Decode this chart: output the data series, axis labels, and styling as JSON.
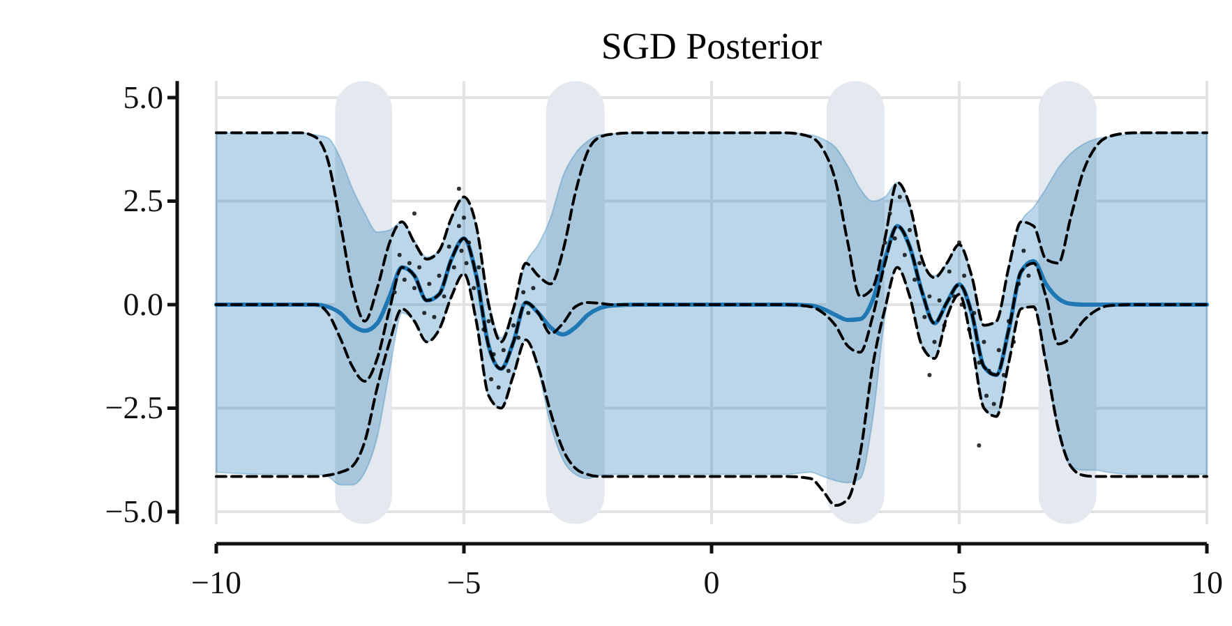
{
  "chart_data": {
    "type": "line",
    "title": "SGD Posterior",
    "x": [
      -10,
      -9,
      -8.3,
      -8,
      -7.75,
      -7.5,
      -7.25,
      -7,
      -6.75,
      -6.5,
      -6.25,
      -6,
      -5.75,
      -5.5,
      -5.25,
      -5,
      -4.75,
      -4.5,
      -4.25,
      -4,
      -3.75,
      -3.5,
      -3.25,
      -3,
      -2.75,
      -2.5,
      -2.25,
      -2,
      -1.5,
      -1,
      0,
      1,
      1.5,
      2,
      2.25,
      2.5,
      2.75,
      3,
      3.25,
      3.5,
      3.75,
      4,
      4.25,
      4.5,
      4.75,
      5,
      5.25,
      5.5,
      5.75,
      6,
      6.25,
      6.5,
      6.75,
      7,
      7.25,
      7.5,
      7.75,
      8,
      8.5,
      9,
      10
    ],
    "series": [
      {
        "color": "#1f77b4",
        "line_style": "solid",
        "values": [
          0,
          0,
          0,
          0,
          -0.05,
          -0.2,
          -0.5,
          -0.63,
          -0.45,
          0.2,
          0.9,
          0.7,
          0.1,
          0.25,
          1.1,
          1.6,
          0.7,
          -1.0,
          -1.55,
          -0.9,
          0.05,
          -0.2,
          -0.55,
          -0.72,
          -0.55,
          -0.25,
          -0.08,
          -0.02,
          0,
          0,
          0,
          0,
          0,
          -0.02,
          -0.1,
          -0.25,
          -0.37,
          -0.35,
          0.1,
          1.1,
          1.9,
          1.4,
          0.3,
          -0.45,
          0.05,
          0.49,
          -0.2,
          -1.5,
          -1.7,
          -0.6,
          0.8,
          1.05,
          0.5,
          0.15,
          0.02,
          0,
          0,
          0,
          0,
          0,
          0
        ],
        "upper": [
          4.15,
          4.13,
          4.15,
          4.1,
          4.03,
          3.55,
          2.8,
          2.2,
          1.75,
          1.8,
          2.0,
          1.55,
          1.15,
          1.3,
          2.1,
          2.6,
          1.9,
          0.1,
          -0.8,
          -0.05,
          1.0,
          1.45,
          2.1,
          3.1,
          3.65,
          3.95,
          4.1,
          4.13,
          4.15,
          4.17,
          4.15,
          4.15,
          4.15,
          4.1,
          4.0,
          3.8,
          3.35,
          2.8,
          2.5,
          2.6,
          2.95,
          2.4,
          1.1,
          0.7,
          1.0,
          1.45,
          0.7,
          -0.5,
          -0.4,
          0.95,
          2.0,
          2.35,
          2.8,
          3.3,
          3.65,
          3.87,
          4.0,
          4.05,
          4.12,
          4.15,
          4.15
        ],
        "lower": [
          -4.05,
          -4.1,
          -4.1,
          -4.1,
          -4.15,
          -4.35,
          -4.35,
          -4.05,
          -3.2,
          -1.6,
          -0.2,
          -0.4,
          -0.9,
          -0.6,
          0.2,
          0.75,
          -0.4,
          -2.2,
          -2.5,
          -1.7,
          -0.85,
          -1.6,
          -2.9,
          -3.75,
          -4.1,
          -4.2,
          -4.12,
          -4.1,
          -4.1,
          -4.1,
          -4.1,
          -4.1,
          -4.1,
          -4.05,
          -4.15,
          -4.25,
          -4.3,
          -4.2,
          -2.8,
          -0.3,
          0.9,
          0.2,
          -1.0,
          -1.3,
          -0.3,
          0.25,
          -0.9,
          -2.5,
          -2.7,
          -1.4,
          -0.1,
          -0.05,
          -1.4,
          -3.1,
          -3.9,
          -4.0,
          -4.0,
          -4.05,
          -4.1,
          -4.1,
          -4.1
        ]
      },
      {
        "type": "line",
        "color": "#000000",
        "line_style": "dashed",
        "values": [
          0,
          0,
          0,
          0,
          -0.2,
          -0.8,
          -1.5,
          -1.85,
          -1.3,
          -0.1,
          0.9,
          0.7,
          0.1,
          0.25,
          1.1,
          1.6,
          0.7,
          -1.0,
          -1.55,
          -0.9,
          0.05,
          -0.2,
          -0.7,
          -0.45,
          -0.05,
          0.05,
          0.03,
          0,
          0,
          0,
          0,
          0,
          0,
          -0.05,
          -0.2,
          -0.5,
          -1.0,
          -1.15,
          -0.3,
          1.0,
          1.9,
          1.4,
          0.3,
          -0.45,
          0.05,
          0.49,
          -0.2,
          -1.5,
          -1.7,
          -0.6,
          0.8,
          1.0,
          0.2,
          -0.95,
          -0.8,
          -0.4,
          -0.15,
          -0.03,
          0,
          0,
          0
        ]
      },
      {
        "type": "line",
        "color": "#000000",
        "line_style": "dashed",
        "values": [
          4.15,
          4.15,
          4.15,
          4.05,
          3.5,
          2.0,
          0.4,
          -0.4,
          0.4,
          1.5,
          2.0,
          1.5,
          1.1,
          1.3,
          2.1,
          2.6,
          1.9,
          0.0,
          -0.9,
          -0.1,
          1.0,
          0.7,
          0.5,
          1.3,
          2.7,
          3.7,
          4.05,
          4.12,
          4.15,
          4.15,
          4.15,
          4.15,
          4.15,
          4.05,
          3.75,
          3.0,
          1.5,
          0.2,
          0.4,
          1.6,
          2.95,
          2.4,
          1.1,
          0.65,
          1.0,
          1.45,
          0.7,
          -0.5,
          -0.4,
          0.9,
          2.0,
          1.9,
          1.1,
          1.0,
          2.1,
          3.2,
          3.8,
          4.05,
          4.15,
          4.15,
          4.15
        ]
      },
      {
        "type": "line",
        "color": "#000000",
        "line_style": "dashed",
        "values": [
          -4.15,
          -4.15,
          -4.15,
          -4.15,
          -4.12,
          -4.05,
          -3.9,
          -3.3,
          -2.0,
          -0.9,
          -0.1,
          -0.4,
          -0.9,
          -0.6,
          0.2,
          0.75,
          -0.4,
          -2.2,
          -2.5,
          -1.7,
          -0.85,
          -1.5,
          -2.6,
          -3.5,
          -3.95,
          -4.1,
          -4.15,
          -4.15,
          -4.15,
          -4.15,
          -4.15,
          -4.15,
          -4.15,
          -4.2,
          -4.5,
          -4.85,
          -4.7,
          -3.6,
          -1.5,
          -0.1,
          0.9,
          0.2,
          -1.0,
          -1.3,
          -0.3,
          0.25,
          -0.9,
          -2.5,
          -2.7,
          -1.4,
          -0.1,
          -0.05,
          -1.4,
          -3.0,
          -3.9,
          -4.12,
          -4.15,
          -4.15,
          -4.15,
          -4.15,
          -4.15
        ]
      },
      {
        "type": "scatter",
        "color": "#000000",
        "marker": "circle",
        "x": [
          -6.4,
          -6.3,
          -6.2,
          -6.1,
          -6.0,
          -5.9,
          -5.8,
          -5.7,
          -5.6,
          -5.5,
          -5.4,
          -5.3,
          -5.2,
          -5.1,
          -5.05,
          -5.0,
          -4.95,
          -4.9,
          -4.8,
          -4.7,
          -4.6,
          -4.5,
          -4.45,
          -4.4,
          -4.3,
          -4.2,
          -4.1,
          -4.0,
          -3.9,
          -3.8,
          -3.7,
          -3.6,
          -6.0,
          -5.1,
          3.5,
          3.6,
          3.7,
          3.8,
          3.9,
          4.0,
          4.1,
          4.2,
          4.3,
          4.4,
          4.5,
          4.6,
          4.7,
          4.8,
          4.9,
          5.0,
          5.05,
          5.1,
          5.2,
          5.3,
          5.4,
          5.5,
          5.55,
          5.6,
          5.7,
          5.8,
          5.9,
          6.0,
          6.1,
          6.2,
          6.3,
          6.4,
          5.4,
          4.4
        ],
        "values": [
          0.3,
          1.2,
          0.6,
          1.0,
          0.4,
          0.9,
          -0.2,
          0.5,
          -0.3,
          0.7,
          0.2,
          1.4,
          0.9,
          1.9,
          1.3,
          2.1,
          1.0,
          1.5,
          0.4,
          0.9,
          -0.6,
          -0.4,
          -1.8,
          -1.2,
          -2.0,
          -1.1,
          -1.6,
          -0.5,
          -0.8,
          0.3,
          -0.2,
          0.4,
          2.2,
          2.8,
          1.5,
          2.2,
          1.6,
          2.6,
          1.2,
          1.8,
          0.6,
          1.0,
          -0.3,
          0.2,
          -0.9,
          0.1,
          -0.5,
          0.8,
          0.2,
          1.5,
          0.0,
          0.7,
          -0.6,
          -0.2,
          -1.4,
          -0.9,
          -2.2,
          -1.6,
          -2.4,
          -1.1,
          -1.7,
          -0.4,
          -0.9,
          0.5,
          1.3,
          0.7,
          -3.4,
          -1.7
        ]
      }
    ],
    "bands": [
      {
        "axis": "x",
        "from": -7.6,
        "to": -6.45,
        "color": "#e3e9ee"
      },
      {
        "axis": "x",
        "from": -3.34,
        "to": -2.16,
        "color": "#e3e9ee"
      },
      {
        "axis": "x",
        "from": 2.32,
        "to": 3.49,
        "color": "#e3e9ee"
      },
      {
        "axis": "x",
        "from": 6.6,
        "to": 7.77,
        "color": "#e3e9ee"
      }
    ],
    "xlim": [
      -10,
      10
    ],
    "xticks": [
      {
        "value": -10,
        "label": "−10"
      },
      {
        "value": -5,
        "label": "−5"
      },
      0,
      5,
      10
    ],
    "ylim": [
      -5.3,
      5.4
    ],
    "yticks": [
      {
        "value": -5,
        "label": "−5.0"
      },
      {
        "value": -2.5,
        "label": "−2.5"
      },
      {
        "value": 0,
        "label": "0.0"
      },
      {
        "value": 2.5,
        "label": "2.5"
      },
      {
        "value": 5,
        "label": "5.0"
      }
    ],
    "grid": true
  }
}
